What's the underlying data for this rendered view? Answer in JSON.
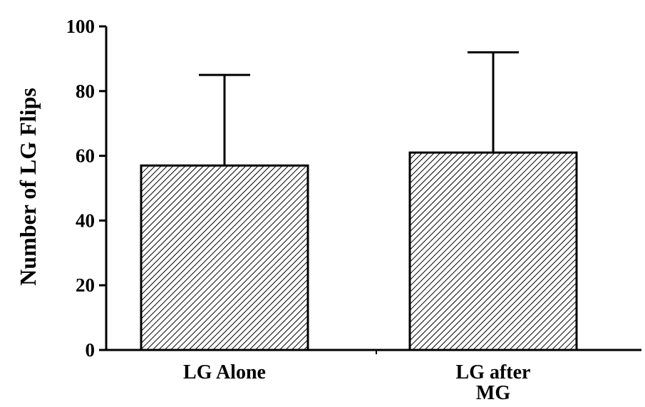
{
  "chart_data": {
    "type": "bar",
    "title": "",
    "xlabel": "",
    "ylabel": "Number of LG Flips",
    "categories": [
      [
        "LG Alone"
      ],
      [
        "LG after",
        "MG"
      ]
    ],
    "values": [
      57,
      61
    ],
    "error_upper": [
      85,
      92
    ],
    "ylim": [
      0,
      100
    ],
    "yticks": [
      0,
      20,
      40,
      60,
      80,
      100
    ],
    "bar_fill": "hatched",
    "colors": {
      "bar_stroke": "#000000",
      "hatch": "#000000",
      "axis": "#000000"
    }
  }
}
